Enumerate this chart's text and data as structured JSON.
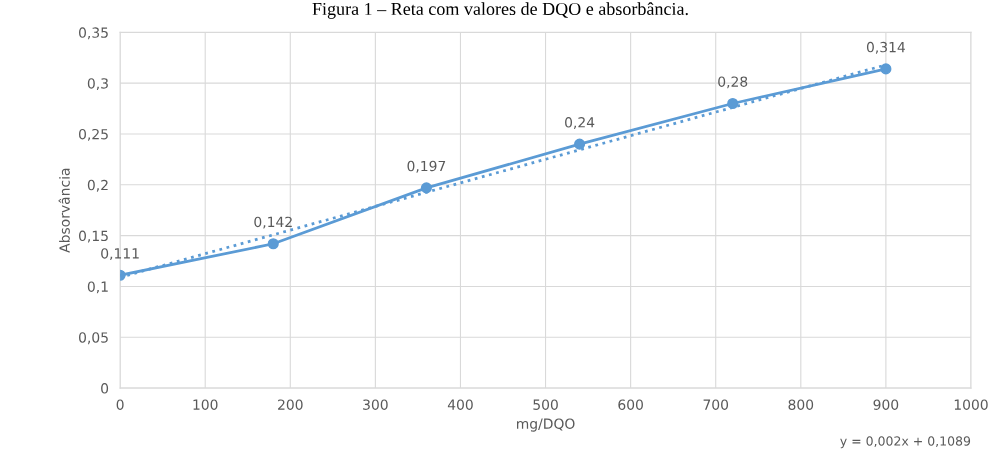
{
  "chart_data": {
    "type": "line",
    "title": "Figura 1 – Reta com valores de DQO e absorbância.",
    "xlabel": "mg/DQO",
    "ylabel": "Absorvância",
    "annotations": [
      "y = 0,002x + 0,1089"
    ],
    "series": [
      {
        "color": "#5b9bd5",
        "x": [
          0,
          180,
          360,
          540,
          720,
          900
        ],
        "values": [
          0.111,
          0.142,
          0.197,
          0.24,
          0.28,
          0.314
        ],
        "value_labels": [
          "0,111",
          "0,142",
          "0,197",
          "0,24",
          "0,28",
          "0,314"
        ],
        "marker": "circle",
        "line_style": "solid"
      },
      {
        "color": "#5b9bd5",
        "x": [
          0,
          900
        ],
        "values": [
          0.109,
          0.318
        ],
        "marker": "none",
        "line_style": "dotted"
      }
    ],
    "xlim": [
      0,
      1000
    ],
    "xticks": [
      0,
      100,
      200,
      300,
      400,
      500,
      600,
      700,
      800,
      900,
      1000
    ],
    "ylim": [
      0,
      0.35
    ],
    "yticks": [
      0,
      {
        "value": 0.05,
        "label": "0,05"
      },
      {
        "value": 0.1,
        "label": "0,1"
      },
      {
        "value": 0.15,
        "label": "0,15"
      },
      {
        "value": 0.2,
        "label": "0,2"
      },
      {
        "value": 0.25,
        "label": "0,25"
      },
      {
        "value": 0.3,
        "label": "0,3"
      },
      {
        "value": 0.35,
        "label": "0,35"
      }
    ],
    "grid": true
  }
}
